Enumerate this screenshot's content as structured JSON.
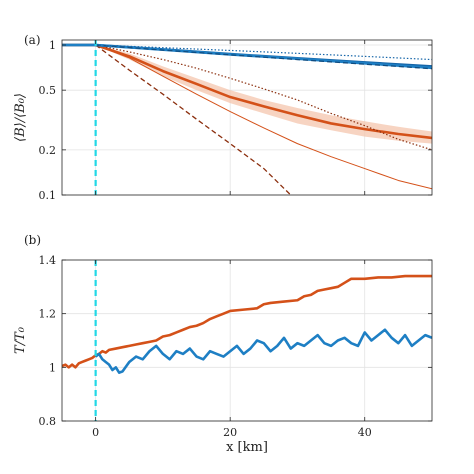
{
  "chart_data": [
    {
      "panel_label": "(a)",
      "type": "line",
      "ylabel": "⟨B⟩/⟨B₀⟩",
      "xlabel": "",
      "xlim": [
        -5,
        50
      ],
      "ylim": [
        0.1,
        1.08
      ],
      "yscale": "log",
      "xticks": [
        0,
        20,
        40
      ],
      "xtick_labels": [
        "",
        "",
        ""
      ],
      "yticks": [
        0.1,
        0.2,
        0.5,
        1
      ],
      "ytick_labels": [
        "0.1",
        "0.2",
        "0.5",
        "1"
      ],
      "grid": true,
      "legend": "none",
      "vline": {
        "x": 0,
        "color": "#21d8e6"
      },
      "series": [
        {
          "style": "solid-thick",
          "color": "#d45119",
          "x": [
            -5,
            0,
            5,
            10,
            15,
            20,
            25,
            30,
            35,
            40,
            45,
            50
          ],
          "y": [
            1,
            1,
            0.84,
            0.67,
            0.55,
            0.45,
            0.39,
            0.34,
            0.3,
            0.275,
            0.255,
            0.24
          ]
        },
        {
          "style": "band",
          "color": "#f4c6ad",
          "x": [
            0,
            5,
            10,
            15,
            20,
            25,
            30,
            35,
            40,
            45,
            50
          ],
          "y_low": [
            1,
            0.8,
            0.62,
            0.5,
            0.41,
            0.35,
            0.3,
            0.27,
            0.245,
            0.23,
            0.22
          ],
          "y_high": [
            1,
            0.88,
            0.72,
            0.6,
            0.5,
            0.43,
            0.38,
            0.34,
            0.31,
            0.285,
            0.265
          ]
        },
        {
          "style": "solid-thin",
          "color": "#d45119",
          "x": [
            0,
            5,
            10,
            15,
            20,
            25,
            30,
            35,
            40,
            45,
            50
          ],
          "y": [
            1,
            0.82,
            0.62,
            0.47,
            0.36,
            0.28,
            0.22,
            0.18,
            0.15,
            0.125,
            0.11
          ]
        },
        {
          "style": "dotted",
          "color": "#8b2e0d",
          "x": [
            0,
            5,
            10,
            15,
            20,
            25,
            30,
            35,
            40,
            45,
            50
          ],
          "y": [
            1,
            0.9,
            0.8,
            0.7,
            0.6,
            0.51,
            0.43,
            0.35,
            0.29,
            0.235,
            0.2
          ]
        },
        {
          "style": "dashed",
          "color": "#8b2e0d",
          "x": [
            0,
            5,
            10,
            15,
            20,
            25,
            29
          ],
          "y": [
            1,
            0.68,
            0.47,
            0.32,
            0.22,
            0.15,
            0.1
          ]
        },
        {
          "style": "solid-thick",
          "color": "#1565a8",
          "x": [
            -5,
            0,
            10,
            20,
            30,
            40,
            50
          ],
          "y": [
            1,
            1,
            0.935,
            0.87,
            0.815,
            0.765,
            0.72
          ]
        },
        {
          "style": "solid-thick",
          "color": "#1e7fc4",
          "x": [
            -5,
            0,
            10,
            20,
            30,
            40,
            50
          ],
          "y": [
            1,
            1,
            0.93,
            0.865,
            0.81,
            0.755,
            0.705
          ]
        },
        {
          "style": "dashed",
          "color": "#0f4d82",
          "x": [
            0,
            10,
            20,
            30,
            40,
            50
          ],
          "y": [
            1,
            0.925,
            0.86,
            0.8,
            0.745,
            0.695
          ]
        },
        {
          "style": "dotted",
          "color": "#1565a8",
          "x": [
            0,
            10,
            20,
            30,
            40,
            50
          ],
          "y": [
            1,
            0.96,
            0.92,
            0.88,
            0.84,
            0.8
          ]
        }
      ]
    },
    {
      "panel_label": "(b)",
      "type": "line",
      "ylabel": "T/T₀",
      "xlabel": "x [km]",
      "xlim": [
        -5,
        50
      ],
      "ylim": [
        0.8,
        1.4
      ],
      "yscale": "linear",
      "xticks": [
        0,
        20,
        40
      ],
      "xtick_labels": [
        "0",
        "20",
        "40"
      ],
      "yticks": [
        0.8,
        1,
        1.2,
        1.4
      ],
      "ytick_labels": [
        "0.8",
        "1",
        "1.2",
        "1.4"
      ],
      "grid": true,
      "legend": "none",
      "vline": {
        "x": 0,
        "color": "#21d8e6"
      },
      "series": [
        {
          "style": "solid-thick",
          "color": "#d45119",
          "x": [
            -5,
            -4.5,
            -4,
            -3.5,
            -3,
            -2.5,
            -2,
            -1.5,
            -1,
            -0.5,
            0,
            0.5,
            1,
            1.5,
            2,
            3,
            4,
            5,
            6,
            7,
            8,
            9,
            10,
            11,
            12,
            13,
            14,
            15,
            16,
            17,
            18,
            19,
            20,
            22,
            24,
            25,
            26,
            28,
            30,
            31,
            32,
            33,
            34,
            35,
            36,
            37,
            38,
            40,
            42,
            44,
            46,
            48,
            50
          ],
          "y": [
            1.005,
            1.01,
            1.0,
            1.01,
            1.0,
            1.015,
            1.02,
            1.025,
            1.03,
            1.035,
            1.045,
            1.05,
            1.06,
            1.055,
            1.065,
            1.07,
            1.075,
            1.08,
            1.085,
            1.09,
            1.095,
            1.1,
            1.115,
            1.12,
            1.13,
            1.14,
            1.15,
            1.155,
            1.165,
            1.18,
            1.19,
            1.2,
            1.21,
            1.215,
            1.22,
            1.235,
            1.24,
            1.245,
            1.25,
            1.265,
            1.27,
            1.285,
            1.29,
            1.295,
            1.3,
            1.315,
            1.33,
            1.33,
            1.335,
            1.335,
            1.34,
            1.34,
            1.34
          ]
        },
        {
          "style": "solid-thick",
          "color": "#1e7fc4",
          "x": [
            0,
            0.5,
            1,
            1.5,
            2,
            2.5,
            3,
            3.5,
            4,
            5,
            6,
            7,
            8,
            9,
            10,
            11,
            12,
            13,
            14,
            15,
            16,
            17,
            18,
            19,
            20,
            21,
            22,
            23,
            24,
            25,
            26,
            27,
            28,
            29,
            30,
            31,
            32,
            33,
            34,
            35,
            36,
            37,
            38,
            39,
            40,
            41,
            42,
            43,
            44,
            45,
            46,
            47,
            48,
            49,
            50
          ],
          "y": [
            1.04,
            1.05,
            1.03,
            1.02,
            1.01,
            0.99,
            1.0,
            0.98,
            0.985,
            1.02,
            1.04,
            1.03,
            1.06,
            1.08,
            1.05,
            1.03,
            1.06,
            1.05,
            1.07,
            1.04,
            1.03,
            1.06,
            1.05,
            1.04,
            1.06,
            1.08,
            1.05,
            1.07,
            1.1,
            1.09,
            1.06,
            1.08,
            1.11,
            1.07,
            1.09,
            1.08,
            1.1,
            1.12,
            1.09,
            1.08,
            1.1,
            1.11,
            1.09,
            1.08,
            1.13,
            1.1,
            1.12,
            1.14,
            1.11,
            1.09,
            1.12,
            1.08,
            1.1,
            1.12,
            1.11
          ]
        }
      ]
    }
  ]
}
